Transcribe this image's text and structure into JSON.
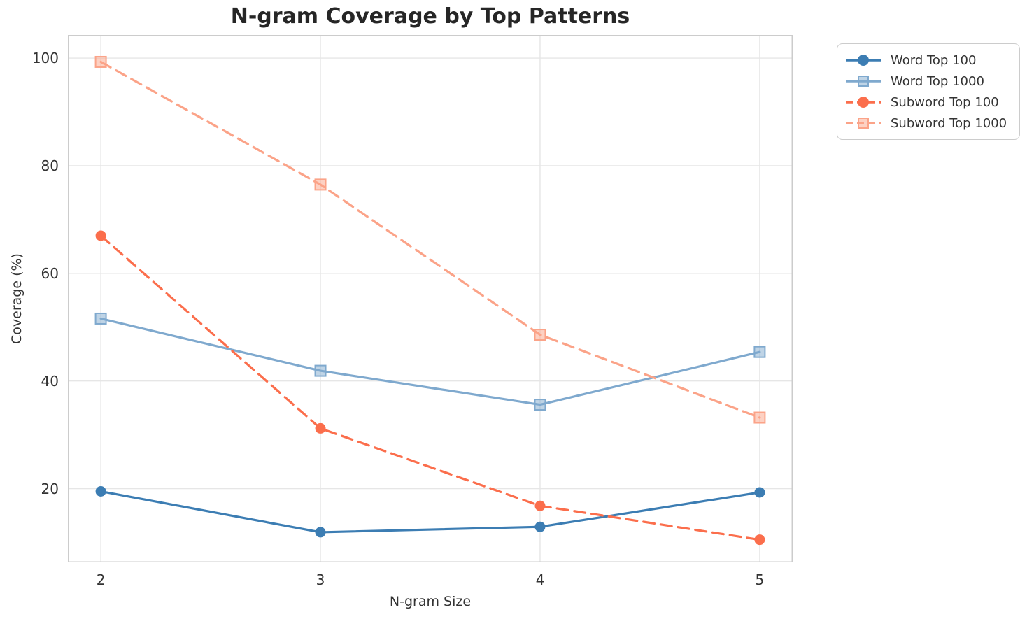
{
  "figure": {
    "title": "N-gram Coverage by Top Patterns",
    "xlabel": "N-gram Size",
    "ylabel": "Coverage (%)"
  },
  "chart_data": {
    "type": "line",
    "title": "N-gram Coverage by Top Patterns",
    "xlabel": "N-gram Size",
    "ylabel": "Coverage (%)",
    "x": [
      2,
      3,
      4,
      5
    ],
    "x_ticklabels": [
      "2",
      "3",
      "4",
      "5"
    ],
    "y_ticks": [
      20,
      40,
      60,
      80,
      100
    ],
    "y_ticklabels": [
      "20",
      "40",
      "60",
      "80",
      "100"
    ],
    "xlim": [
      1.85,
      5.15
    ],
    "ylim": [
      6.3,
      104.3
    ],
    "grid": true,
    "legend_position": "outside-top-right",
    "series": [
      {
        "name": "Word Top 100",
        "color": "#3c7db3",
        "marker": "circle",
        "line_style": "solid",
        "values": [
          19.5,
          11.9,
          12.9,
          19.3
        ]
      },
      {
        "name": "Word Top 1000",
        "color": "#7fa9ce",
        "marker": "square",
        "line_style": "solid",
        "values": [
          51.6,
          41.9,
          35.6,
          45.4
        ]
      },
      {
        "name": "Subword Top 100",
        "color": "#fb6e4c",
        "marker": "circle",
        "line_style": "dashed",
        "values": [
          67.0,
          31.2,
          16.8,
          10.5
        ]
      },
      {
        "name": "Subword Top 1000",
        "color": "#fba388",
        "marker": "square",
        "line_style": "dashed",
        "values": [
          99.3,
          76.5,
          48.6,
          33.2
        ]
      }
    ],
    "colors": {
      "grid": "#e6e6e6",
      "spine": "#cccccc",
      "tick_text": "#333333",
      "title_text": "#262626",
      "background": "#ffffff"
    }
  }
}
